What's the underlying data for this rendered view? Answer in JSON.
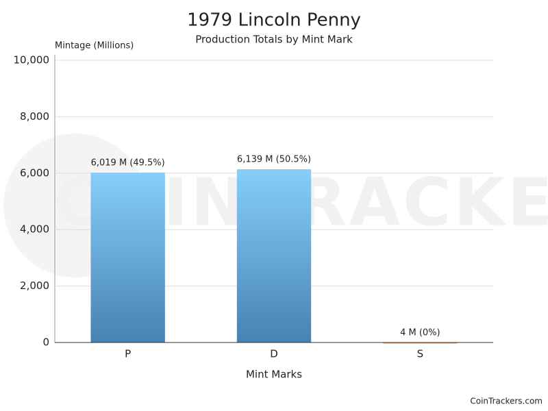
{
  "chart_data": {
    "type": "bar",
    "title": "1979 Lincoln Penny",
    "subtitle": "Production Totals by Mint Mark",
    "y_label": "Mintage (Millions)",
    "x_label": "Mint Marks",
    "watermark": "COINTRACKERS",
    "credit": "CoinTrackers.com",
    "categories": [
      "P",
      "D",
      "S"
    ],
    "values": [
      6019,
      6139,
      4
    ],
    "value_labels": [
      "6,019 M (49.5%)",
      "6,139 M (50.5%)",
      "4 M (0%)"
    ],
    "colors": [
      "#4682b4",
      "#4682b4",
      "#e07b3c"
    ],
    "top_colors": [
      "#87cefa",
      "#87cefa",
      "#f4a460"
    ],
    "ylim": [
      0,
      10000
    ],
    "yticks": [
      0,
      {
        "value": 2000,
        "label": "2,000"
      },
      {
        "value": 4000,
        "label": "4,000"
      },
      {
        "value": 6000,
        "label": "6,000"
      },
      {
        "value": 8000,
        "label": "8,000"
      },
      {
        "value": 10000,
        "label": "10,000"
      }
    ],
    "grid": true
  }
}
